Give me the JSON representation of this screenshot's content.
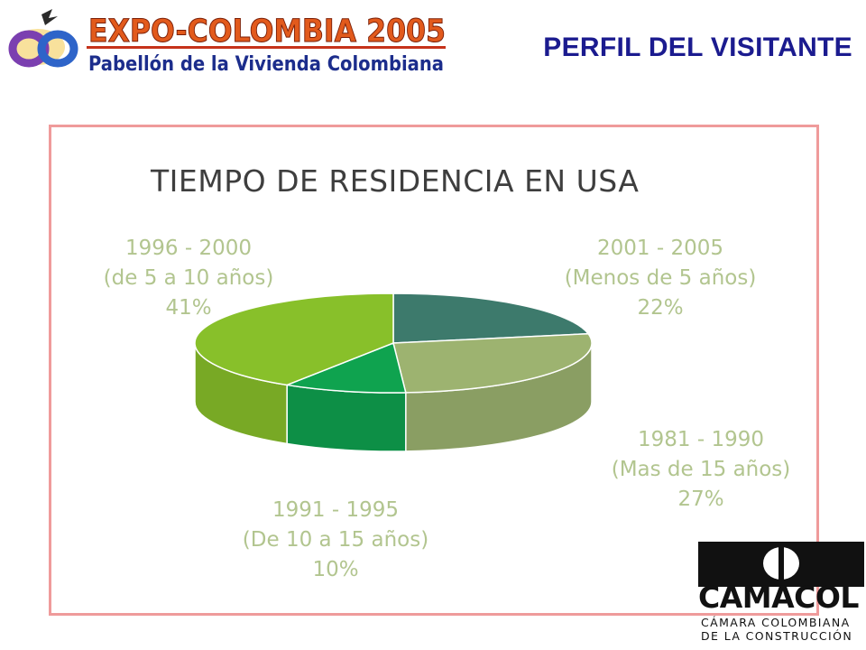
{
  "header": {
    "logo_title": "EXPO-COLOMBIA 2005",
    "logo_subtitle": "Pabellón de la Vivienda Colombiana",
    "slide_title": "PERFIL DEL VISITANTE"
  },
  "chart_data": {
    "type": "pie",
    "title": "TIEMPO DE RESIDENCIA EN USA",
    "slices": [
      {
        "period": "1996 - 2000",
        "description": "(de 5 a 10 años)",
        "value": 41,
        "value_label": "41%",
        "color": "#88c02a"
      },
      {
        "period": "2001 - 2005",
        "description": "(Menos de 5 años)",
        "value": 22,
        "value_label": "22%",
        "color": "#3d7a6c"
      },
      {
        "period": "1981 - 1990",
        "description": "(Mas de 15 años)",
        "value": 27,
        "value_label": "27%",
        "color": "#9db370"
      },
      {
        "period": "1991 - 1995",
        "description": "(De 10 a 15 años)",
        "value": 10,
        "value_label": "10%",
        "color": "#0fa34f"
      }
    ],
    "label_color": "#b2c58f",
    "frame_color": "#ef9b9b"
  },
  "footer_logo": {
    "name": "CAMACOL",
    "line1": "CÁMARA COLOMBIANA",
    "line2": "DE LA CONSTRUCCIÓN"
  }
}
